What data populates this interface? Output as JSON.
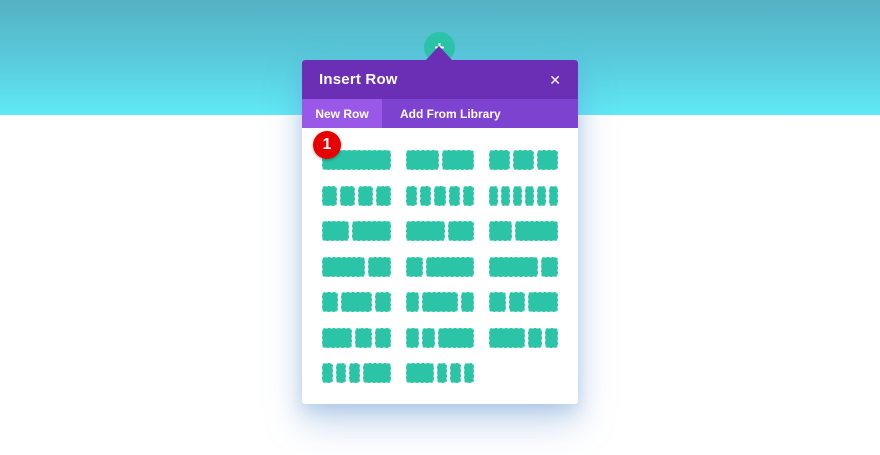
{
  "modal": {
    "title": "Insert Row",
    "close_icon": "✕",
    "tabs": [
      {
        "label": "New Row",
        "active": true
      },
      {
        "label": "Add From Library",
        "active": false
      }
    ]
  },
  "plus_button": {
    "icon": "+"
  },
  "annotation_badge": {
    "value": "1"
  },
  "colors": {
    "header_purple": "#6a2fb5",
    "tabbar_purple": "#7d42d0",
    "active_tab_purple": "#9a58e8",
    "block_green": "#2bc4a7",
    "badge_red": "#e60000",
    "sky_gradient_top": "#54b1c3",
    "sky_gradient_bottom": "#60e9f6"
  },
  "row_layouts": [
    {
      "name": "fullwidth",
      "columns": [
        1
      ]
    },
    {
      "name": "1_2-1_2",
      "columns": [
        1,
        1
      ]
    },
    {
      "name": "1_3-1_3-1_3",
      "columns": [
        1,
        1,
        1
      ]
    },
    {
      "name": "1_4-1_4-1_4-1_4",
      "columns": [
        1,
        1,
        1,
        1
      ]
    },
    {
      "name": "1_5-x5",
      "columns": [
        1,
        1,
        1,
        1,
        1
      ]
    },
    {
      "name": "1_6-x6",
      "columns": [
        1,
        1,
        1,
        1,
        1,
        1
      ]
    },
    {
      "name": "2_5-3_5",
      "columns": [
        2,
        3
      ]
    },
    {
      "name": "3_5-2_5",
      "columns": [
        3,
        2
      ]
    },
    {
      "name": "1_3-2_3",
      "columns": [
        1,
        2
      ]
    },
    {
      "name": "2_3-1_3",
      "columns": [
        2,
        1
      ]
    },
    {
      "name": "1_4-3_4",
      "columns": [
        1,
        3
      ]
    },
    {
      "name": "3_4-1_4",
      "columns": [
        3,
        1
      ]
    },
    {
      "name": "1_4-1_2-1_4",
      "columns": [
        1,
        2,
        1
      ]
    },
    {
      "name": "1_5-3_5-1_5",
      "columns": [
        1,
        3,
        1
      ]
    },
    {
      "name": "1_4-1_4-1_2",
      "columns": [
        1,
        1,
        2
      ]
    },
    {
      "name": "1_2-1_4-1_4",
      "columns": [
        2,
        1,
        1
      ]
    },
    {
      "name": "1_5-1_5-3_5",
      "columns": [
        1,
        1,
        3
      ]
    },
    {
      "name": "3_5-1_5-1_5",
      "columns": [
        3,
        1,
        1
      ]
    },
    {
      "name": "1_6-1_6-1_6-1_2",
      "columns": [
        1,
        1,
        1,
        3
      ]
    },
    {
      "name": "1_2-1_6-1_6-1_6",
      "columns": [
        3,
        1,
        1,
        1
      ]
    }
  ]
}
